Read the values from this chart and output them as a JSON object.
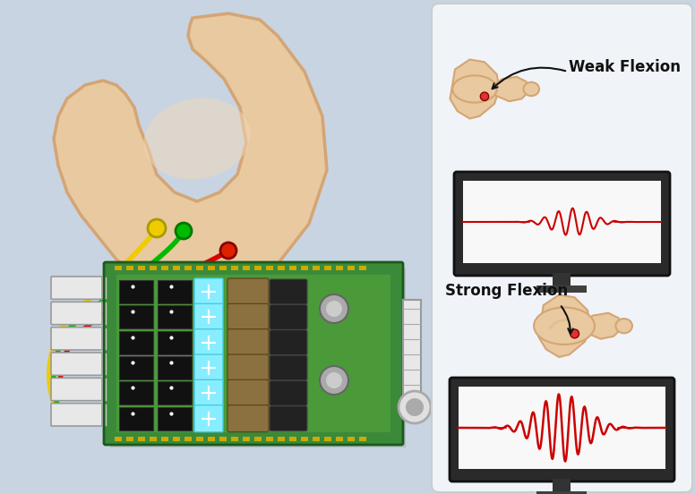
{
  "bg_color": "#c8d4e2",
  "skin_color": "#e8c9a0",
  "skin_edge": "#d4a574",
  "skin_dark": "#c49060",
  "wire_red": "#dd0000",
  "wire_green": "#00bb00",
  "wire_yellow": "#eecc00",
  "board_green": "#3a8a3a",
  "board_light": "#5aaa3a",
  "board_dark": "#1a5a1a",
  "cyan_led": "#88eeff",
  "cyan_led_edge": "#44ccdd",
  "chip_black": "#111111",
  "brown_comp": "#8b7040",
  "connector_white": "#e8e8e8",
  "connector_edge": "#999999",
  "gold_pad": "#ccaa00",
  "monitor_dark": "#2a2a2a",
  "monitor_stand": "#333333",
  "screen_white": "#f8f8f8",
  "signal_red": "#cc0000",
  "panel_bg": "#f0f4f8",
  "panel_edge": "#cccccc",
  "text_color": "#111111",
  "text_weak": "Weak Flexion",
  "text_strong": "Strong Flexion",
  "electrode_yellow": "#eecc00",
  "electrode_green": "#00bb00",
  "electrode_red": "#dd2200",
  "elbow_red": "#dd3333"
}
